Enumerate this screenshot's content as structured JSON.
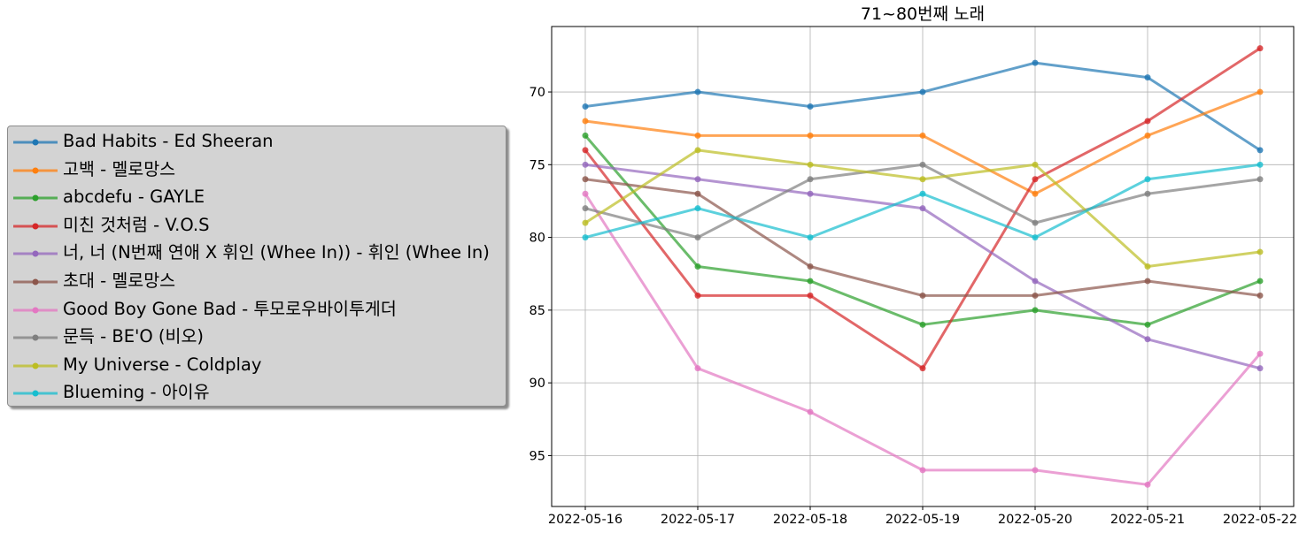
{
  "chart_data": {
    "type": "line",
    "title": "71~80번째 노래",
    "xlabel": "",
    "ylabel": "",
    "y_inverted": true,
    "ylim": [
      98.5,
      65.5
    ],
    "yticks": [
      70,
      75,
      80,
      85,
      90,
      95
    ],
    "grid": true,
    "legend_position": "left-outside",
    "x": [
      "2022-05-16",
      "2022-05-17",
      "2022-05-18",
      "2022-05-19",
      "2022-05-20",
      "2022-05-21",
      "2022-05-22"
    ],
    "series": [
      {
        "name": "Bad Habits - Ed Sheeran",
        "color": "#1f77b4",
        "values": [
          71,
          70,
          71,
          70,
          68,
          69,
          74
        ]
      },
      {
        "name": "고백 - 멜로망스",
        "color": "#ff7f0e",
        "values": [
          72,
          73,
          73,
          73,
          77,
          73,
          70
        ]
      },
      {
        "name": "abcdefu - GAYLE",
        "color": "#2ca02c",
        "values": [
          73,
          82,
          83,
          86,
          85,
          86,
          83
        ]
      },
      {
        "name": "미친 것처럼 - V.O.S",
        "color": "#d62728",
        "values": [
          74,
          84,
          84,
          89,
          76,
          72,
          67
        ]
      },
      {
        "name": "너, 너 (N번째 연애 X 휘인 (Whee In)) - 휘인 (Whee In)",
        "color": "#9467bd",
        "values": [
          75,
          76,
          77,
          78,
          83,
          87,
          89
        ]
      },
      {
        "name": "초대 - 멜로망스",
        "color": "#8c564b",
        "values": [
          76,
          77,
          82,
          84,
          84,
          83,
          84
        ]
      },
      {
        "name": "Good Boy Gone Bad - 투모로우바이투게더",
        "color": "#e377c2",
        "values": [
          77,
          89,
          92,
          96,
          96,
          97,
          88
        ]
      },
      {
        "name": "문득 - BE'O (비오)",
        "color": "#7f7f7f",
        "values": [
          78,
          80,
          76,
          75,
          79,
          77,
          76
        ]
      },
      {
        "name": "My Universe - Coldplay",
        "color": "#bcbd22",
        "values": [
          79,
          74,
          75,
          76,
          75,
          82,
          81
        ]
      },
      {
        "name": "Blueming - 아이유",
        "color": "#17becf",
        "values": [
          80,
          78,
          80,
          77,
          80,
          76,
          75
        ]
      }
    ]
  }
}
